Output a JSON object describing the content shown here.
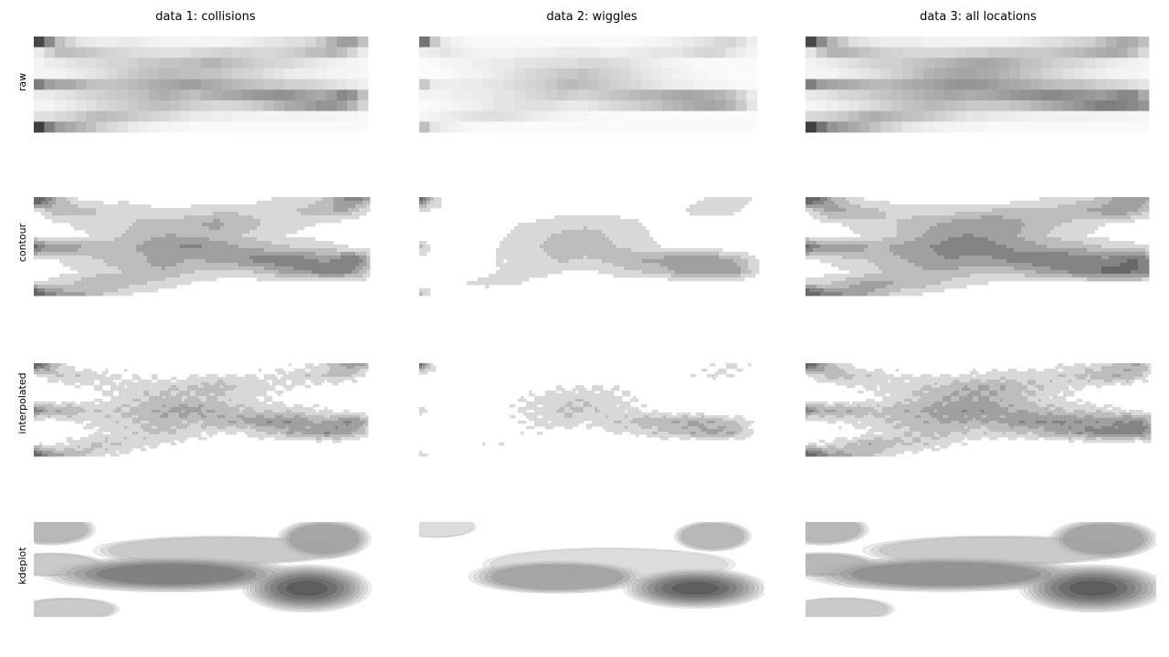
{
  "chart_data": {
    "type": "heatmap",
    "layout": "grid",
    "columns": [
      "data 1: collisions",
      "data 2: wiggles",
      "data 3: all locations"
    ],
    "rows": [
      "raw",
      "contour",
      "interpolated",
      "kdeplot"
    ],
    "colormap": "greys",
    "axes_visible": false,
    "grid": false,
    "x_bins": 32,
    "y_bins": 9,
    "datasets": [
      {
        "name": "data 1: collisions",
        "density": [
          [
            0.85,
            0.55,
            0.3,
            0.2,
            0.12,
            0.1,
            0.08,
            0.08,
            0.1,
            0.1,
            0.08,
            0.06,
            0.05,
            0.05,
            0.05,
            0.05,
            0.06,
            0.05,
            0.05,
            0.06,
            0.08,
            0.1,
            0.12,
            0.12,
            0.15,
            0.15,
            0.18,
            0.25,
            0.35,
            0.45,
            0.45,
            0.3
          ],
          [
            0.1,
            0.2,
            0.3,
            0.3,
            0.28,
            0.25,
            0.22,
            0.2,
            0.18,
            0.16,
            0.16,
            0.15,
            0.14,
            0.14,
            0.15,
            0.18,
            0.18,
            0.2,
            0.22,
            0.2,
            0.2,
            0.18,
            0.18,
            0.2,
            0.22,
            0.25,
            0.3,
            0.3,
            0.35,
            0.3,
            0.2,
            0.1
          ],
          [
            0.05,
            0.08,
            0.1,
            0.12,
            0.15,
            0.15,
            0.18,
            0.2,
            0.2,
            0.22,
            0.25,
            0.25,
            0.28,
            0.28,
            0.3,
            0.3,
            0.35,
            0.35,
            0.3,
            0.28,
            0.25,
            0.22,
            0.2,
            0.18,
            0.18,
            0.15,
            0.12,
            0.1,
            0.08,
            0.06,
            0.05,
            0.04
          ],
          [
            0.05,
            0.05,
            0.06,
            0.08,
            0.1,
            0.12,
            0.15,
            0.18,
            0.22,
            0.25,
            0.28,
            0.3,
            0.32,
            0.32,
            0.3,
            0.3,
            0.28,
            0.28,
            0.25,
            0.22,
            0.2,
            0.18,
            0.15,
            0.12,
            0.1,
            0.08,
            0.08,
            0.06,
            0.05,
            0.05,
            0.04,
            0.04
          ],
          [
            0.6,
            0.45,
            0.4,
            0.4,
            0.35,
            0.3,
            0.28,
            0.28,
            0.3,
            0.32,
            0.35,
            0.38,
            0.4,
            0.42,
            0.45,
            0.45,
            0.4,
            0.38,
            0.35,
            0.32,
            0.3,
            0.28,
            0.25,
            0.25,
            0.22,
            0.22,
            0.2,
            0.18,
            0.15,
            0.12,
            0.1,
            0.08
          ],
          [
            0.1,
            0.1,
            0.12,
            0.15,
            0.18,
            0.2,
            0.22,
            0.25,
            0.25,
            0.28,
            0.3,
            0.35,
            0.38,
            0.35,
            0.32,
            0.3,
            0.35,
            0.38,
            0.4,
            0.42,
            0.45,
            0.48,
            0.5,
            0.52,
            0.5,
            0.45,
            0.42,
            0.4,
            0.45,
            0.55,
            0.5,
            0.3
          ],
          [
            0.05,
            0.05,
            0.08,
            0.1,
            0.12,
            0.15,
            0.18,
            0.2,
            0.22,
            0.25,
            0.28,
            0.3,
            0.3,
            0.28,
            0.25,
            0.22,
            0.2,
            0.18,
            0.18,
            0.2,
            0.22,
            0.25,
            0.3,
            0.35,
            0.4,
            0.42,
            0.45,
            0.5,
            0.5,
            0.45,
            0.35,
            0.2
          ],
          [
            0.15,
            0.15,
            0.18,
            0.2,
            0.25,
            0.3,
            0.32,
            0.3,
            0.28,
            0.25,
            0.22,
            0.2,
            0.18,
            0.15,
            0.12,
            0.1,
            0.1,
            0.08,
            0.08,
            0.06,
            0.06,
            0.05,
            0.05,
            0.05,
            0.06,
            0.06,
            0.05,
            0.05,
            0.05,
            0.04,
            0.04,
            0.03
          ],
          [
            0.9,
            0.6,
            0.45,
            0.4,
            0.35,
            0.3,
            0.22,
            0.18,
            0.15,
            0.1,
            0.08,
            0.06,
            0.05,
            0.04,
            0.04,
            0.03,
            0.03,
            0.03,
            0.03,
            0.02,
            0.02,
            0.02,
            0.02,
            0.02,
            0.02,
            0.02,
            0.02,
            0.02,
            0.02,
            0.02,
            0.02,
            0.02
          ]
        ],
        "kde_peaks": [
          {
            "x": 0.8,
            "y": 0.7,
            "weight": 1.0,
            "spread_x": 0.09,
            "spread_y": 0.12
          },
          {
            "x": 0.4,
            "y": 0.55,
            "weight": 0.75,
            "spread_x": 0.2,
            "spread_y": 0.1
          },
          {
            "x": 0.85,
            "y": 0.18,
            "weight": 0.55,
            "spread_x": 0.08,
            "spread_y": 0.12
          },
          {
            "x": 0.05,
            "y": 0.08,
            "weight": 0.45,
            "spread_x": 0.08,
            "spread_y": 0.1
          },
          {
            "x": 0.05,
            "y": 0.45,
            "weight": 0.35,
            "spread_x": 0.1,
            "spread_y": 0.08
          },
          {
            "x": 0.1,
            "y": 0.92,
            "weight": 0.3,
            "spread_x": 0.1,
            "spread_y": 0.08
          },
          {
            "x": 0.55,
            "y": 0.3,
            "weight": 0.3,
            "spread_x": 0.25,
            "spread_y": 0.1
          }
        ]
      },
      {
        "name": "data 2: wiggles",
        "density": [
          [
            0.65,
            0.25,
            0.1,
            0.06,
            0.04,
            0.03,
            0.03,
            0.03,
            0.03,
            0.03,
            0.03,
            0.03,
            0.03,
            0.03,
            0.03,
            0.03,
            0.03,
            0.03,
            0.03,
            0.03,
            0.03,
            0.04,
            0.05,
            0.06,
            0.08,
            0.1,
            0.12,
            0.15,
            0.18,
            0.2,
            0.15,
            0.08
          ],
          [
            0.08,
            0.1,
            0.12,
            0.1,
            0.08,
            0.06,
            0.05,
            0.05,
            0.05,
            0.06,
            0.06,
            0.08,
            0.08,
            0.1,
            0.1,
            0.1,
            0.1,
            0.08,
            0.08,
            0.08,
            0.1,
            0.1,
            0.12,
            0.12,
            0.12,
            0.15,
            0.18,
            0.2,
            0.18,
            0.12,
            0.08,
            0.05
          ],
          [
            0.02,
            0.03,
            0.04,
            0.05,
            0.06,
            0.08,
            0.08,
            0.1,
            0.1,
            0.12,
            0.12,
            0.14,
            0.15,
            0.16,
            0.16,
            0.18,
            0.18,
            0.18,
            0.16,
            0.15,
            0.12,
            0.1,
            0.08,
            0.06,
            0.05,
            0.04,
            0.03,
            0.03,
            0.02,
            0.02,
            0.02,
            0.02
          ],
          [
            0.02,
            0.02,
            0.03,
            0.04,
            0.05,
            0.06,
            0.08,
            0.1,
            0.12,
            0.15,
            0.18,
            0.2,
            0.22,
            0.25,
            0.25,
            0.28,
            0.25,
            0.22,
            0.2,
            0.18,
            0.15,
            0.12,
            0.1,
            0.08,
            0.06,
            0.05,
            0.04,
            0.03,
            0.03,
            0.02,
            0.02,
            0.02
          ],
          [
            0.25,
            0.1,
            0.08,
            0.08,
            0.1,
            0.1,
            0.12,
            0.12,
            0.15,
            0.18,
            0.2,
            0.22,
            0.25,
            0.3,
            0.32,
            0.3,
            0.28,
            0.25,
            0.22,
            0.2,
            0.18,
            0.15,
            0.12,
            0.1,
            0.08,
            0.08,
            0.06,
            0.05,
            0.05,
            0.04,
            0.03,
            0.03
          ],
          [
            0.05,
            0.05,
            0.06,
            0.08,
            0.08,
            0.1,
            0.1,
            0.12,
            0.12,
            0.15,
            0.18,
            0.2,
            0.22,
            0.25,
            0.22,
            0.2,
            0.22,
            0.25,
            0.28,
            0.3,
            0.32,
            0.35,
            0.35,
            0.38,
            0.4,
            0.42,
            0.4,
            0.38,
            0.35,
            0.3,
            0.2,
            0.1
          ],
          [
            0.02,
            0.03,
            0.04,
            0.05,
            0.06,
            0.08,
            0.1,
            0.12,
            0.12,
            0.14,
            0.15,
            0.15,
            0.14,
            0.12,
            0.1,
            0.1,
            0.12,
            0.15,
            0.18,
            0.2,
            0.22,
            0.25,
            0.28,
            0.32,
            0.35,
            0.38,
            0.4,
            0.42,
            0.4,
            0.35,
            0.25,
            0.12
          ],
          [
            0.05,
            0.06,
            0.08,
            0.1,
            0.12,
            0.14,
            0.15,
            0.15,
            0.14,
            0.12,
            0.1,
            0.08,
            0.06,
            0.05,
            0.04,
            0.04,
            0.03,
            0.03,
            0.03,
            0.02,
            0.02,
            0.02,
            0.02,
            0.02,
            0.02,
            0.02,
            0.02,
            0.02,
            0.02,
            0.02,
            0.02,
            0.02
          ],
          [
            0.3,
            0.12,
            0.08,
            0.06,
            0.04,
            0.03,
            0.03,
            0.02,
            0.02,
            0.02,
            0.02,
            0.02,
            0.02,
            0.02,
            0.02,
            0.02,
            0.02,
            0.02,
            0.02,
            0.02,
            0.02,
            0.02,
            0.02,
            0.02,
            0.02,
            0.02,
            0.02,
            0.02,
            0.02,
            0.02,
            0.02,
            0.02
          ]
        ],
        "kde_peaks": [
          {
            "x": 0.8,
            "y": 0.7,
            "weight": 1.0,
            "spread_x": 0.1,
            "spread_y": 0.1
          },
          {
            "x": 0.4,
            "y": 0.58,
            "weight": 0.55,
            "spread_x": 0.15,
            "spread_y": 0.1
          },
          {
            "x": 0.85,
            "y": 0.15,
            "weight": 0.4,
            "spread_x": 0.07,
            "spread_y": 0.1
          },
          {
            "x": 0.05,
            "y": 0.05,
            "weight": 0.2,
            "spread_x": 0.08,
            "spread_y": 0.08
          },
          {
            "x": 0.55,
            "y": 0.45,
            "weight": 0.25,
            "spread_x": 0.25,
            "spread_y": 0.12
          }
        ]
      },
      {
        "name": "data 3: all locations",
        "density": [
          [
            0.85,
            0.55,
            0.35,
            0.25,
            0.15,
            0.12,
            0.1,
            0.08,
            0.08,
            0.08,
            0.08,
            0.06,
            0.06,
            0.06,
            0.06,
            0.06,
            0.06,
            0.06,
            0.06,
            0.08,
            0.1,
            0.12,
            0.15,
            0.15,
            0.18,
            0.2,
            0.22,
            0.28,
            0.35,
            0.4,
            0.38,
            0.3
          ],
          [
            0.12,
            0.25,
            0.35,
            0.35,
            0.32,
            0.28,
            0.25,
            0.22,
            0.2,
            0.18,
            0.18,
            0.18,
            0.18,
            0.18,
            0.2,
            0.22,
            0.22,
            0.25,
            0.25,
            0.25,
            0.25,
            0.25,
            0.25,
            0.28,
            0.3,
            0.32,
            0.35,
            0.38,
            0.4,
            0.38,
            0.3,
            0.18
          ],
          [
            0.05,
            0.08,
            0.1,
            0.12,
            0.15,
            0.18,
            0.2,
            0.22,
            0.22,
            0.25,
            0.28,
            0.3,
            0.32,
            0.35,
            0.38,
            0.4,
            0.42,
            0.4,
            0.38,
            0.35,
            0.3,
            0.28,
            0.25,
            0.22,
            0.2,
            0.18,
            0.15,
            0.12,
            0.1,
            0.08,
            0.06,
            0.05
          ],
          [
            0.05,
            0.05,
            0.06,
            0.08,
            0.1,
            0.12,
            0.15,
            0.18,
            0.22,
            0.25,
            0.3,
            0.35,
            0.38,
            0.4,
            0.42,
            0.42,
            0.4,
            0.38,
            0.35,
            0.32,
            0.28,
            0.25,
            0.2,
            0.18,
            0.15,
            0.12,
            0.1,
            0.08,
            0.06,
            0.05,
            0.05,
            0.04
          ],
          [
            0.6,
            0.45,
            0.42,
            0.4,
            0.38,
            0.35,
            0.32,
            0.32,
            0.35,
            0.38,
            0.4,
            0.42,
            0.45,
            0.48,
            0.5,
            0.5,
            0.48,
            0.45,
            0.42,
            0.4,
            0.38,
            0.35,
            0.32,
            0.3,
            0.28,
            0.28,
            0.25,
            0.22,
            0.2,
            0.18,
            0.15,
            0.12
          ],
          [
            0.1,
            0.12,
            0.15,
            0.18,
            0.2,
            0.22,
            0.25,
            0.28,
            0.3,
            0.32,
            0.35,
            0.38,
            0.4,
            0.42,
            0.4,
            0.38,
            0.4,
            0.42,
            0.45,
            0.48,
            0.5,
            0.52,
            0.55,
            0.55,
            0.52,
            0.5,
            0.48,
            0.45,
            0.5,
            0.55,
            0.55,
            0.4
          ],
          [
            0.05,
            0.06,
            0.08,
            0.1,
            0.12,
            0.15,
            0.18,
            0.22,
            0.25,
            0.28,
            0.3,
            0.32,
            0.32,
            0.3,
            0.28,
            0.25,
            0.25,
            0.25,
            0.25,
            0.28,
            0.3,
            0.35,
            0.38,
            0.42,
            0.45,
            0.5,
            0.55,
            0.6,
            0.6,
            0.58,
            0.55,
            0.5
          ],
          [
            0.18,
            0.2,
            0.22,
            0.25,
            0.3,
            0.35,
            0.38,
            0.35,
            0.32,
            0.3,
            0.28,
            0.25,
            0.22,
            0.18,
            0.15,
            0.12,
            0.12,
            0.1,
            0.1,
            0.08,
            0.08,
            0.06,
            0.06,
            0.06,
            0.06,
            0.06,
            0.06,
            0.05,
            0.05,
            0.05,
            0.04,
            0.04
          ],
          [
            0.9,
            0.65,
            0.5,
            0.45,
            0.4,
            0.35,
            0.28,
            0.22,
            0.18,
            0.12,
            0.1,
            0.08,
            0.06,
            0.05,
            0.05,
            0.04,
            0.04,
            0.03,
            0.03,
            0.03,
            0.03,
            0.03,
            0.03,
            0.03,
            0.03,
            0.03,
            0.03,
            0.03,
            0.03,
            0.03,
            0.03,
            0.03
          ]
        ],
        "kde_peaks": [
          {
            "x": 0.82,
            "y": 0.7,
            "weight": 1.0,
            "spread_x": 0.1,
            "spread_y": 0.12
          },
          {
            "x": 0.4,
            "y": 0.55,
            "weight": 0.7,
            "spread_x": 0.22,
            "spread_y": 0.1
          },
          {
            "x": 0.85,
            "y": 0.18,
            "weight": 0.55,
            "spread_x": 0.09,
            "spread_y": 0.12
          },
          {
            "x": 0.05,
            "y": 0.08,
            "weight": 0.45,
            "spread_x": 0.08,
            "spread_y": 0.1
          },
          {
            "x": 0.05,
            "y": 0.45,
            "weight": 0.4,
            "spread_x": 0.1,
            "spread_y": 0.08
          },
          {
            "x": 0.1,
            "y": 0.92,
            "weight": 0.35,
            "spread_x": 0.1,
            "spread_y": 0.08
          },
          {
            "x": 0.55,
            "y": 0.3,
            "weight": 0.35,
            "spread_x": 0.25,
            "spread_y": 0.1
          }
        ]
      }
    ]
  }
}
